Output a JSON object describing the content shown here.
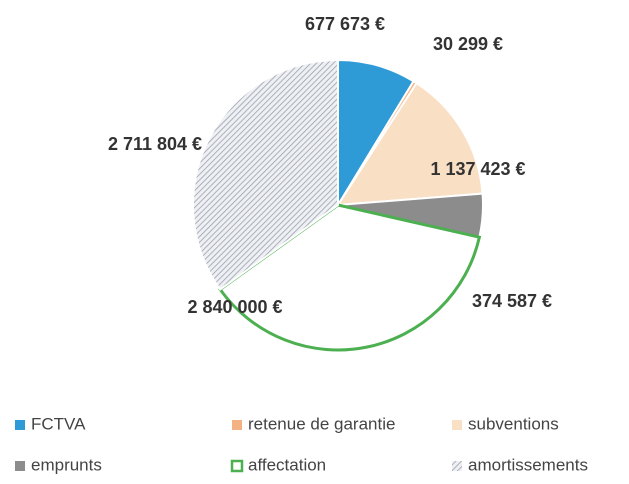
{
  "chart_data": {
    "type": "pie",
    "categories": [
      "FCTVA",
      "retenue de garantie",
      "subventions",
      "emprunts",
      "affectation",
      "amortissements"
    ],
    "values": [
      677673,
      30299,
      1137423,
      374587,
      2840000,
      2711804
    ],
    "value_labels": [
      "677 673 €",
      "30 299 €",
      "1 137 423 €",
      "374 587 €",
      "2 840 000 €",
      "2 711 804 €"
    ],
    "colors": [
      "#2e9ad6",
      "#f4b183",
      "#f9dfc4",
      "#8c8c8c",
      "#ffffff",
      "#c4c8d2"
    ],
    "legend": "bottom"
  }
}
